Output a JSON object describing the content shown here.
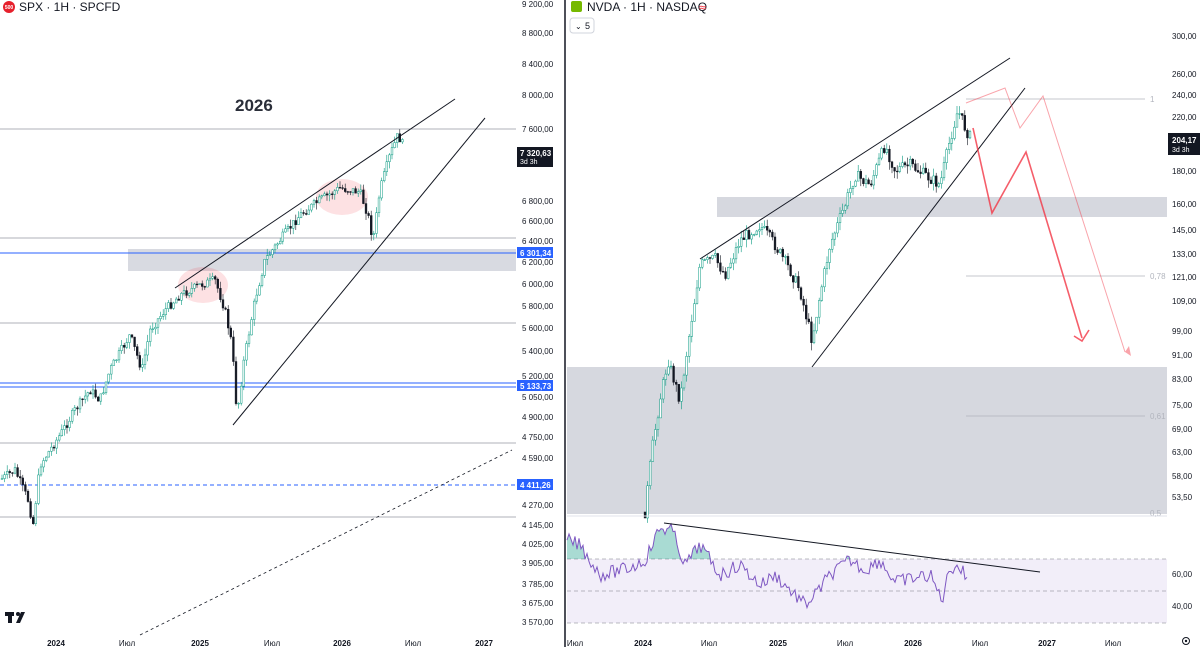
{
  "left_chart": {
    "symbol": "SPX · 1H · SPCFD",
    "badge": "500",
    "annotation": "2026",
    "price_axis": [
      "9 200,00",
      "8 800,00",
      "8 400,00",
      "8 000,00",
      "7 600,00",
      "6 800,00",
      "6 600,00",
      "6 400,00",
      "6 200,00",
      "6 000,00",
      "5 800,00",
      "5 600,00",
      "5 400,00",
      "5 200,00",
      "5 050,00",
      "4 900,00",
      "4 750,00",
      "4 590,00",
      "4 270,00",
      "4 145,00",
      "4 025,00",
      "3 905,00",
      "3 785,00",
      "3 675,00",
      "3 570,00"
    ],
    "time_axis": [
      {
        "label": "2024",
        "bold": true
      },
      {
        "label": "Июл",
        "bold": false
      },
      {
        "label": "2025",
        "bold": true
      },
      {
        "label": "Июл",
        "bold": false
      },
      {
        "label": "2026",
        "bold": true
      },
      {
        "label": "Июл",
        "bold": false
      },
      {
        "label": "2027",
        "bold": true
      }
    ],
    "price_tags": [
      {
        "label": "7 320,63",
        "sub": "3d 3h",
        "color": "#131722"
      },
      {
        "label": "6 301,34",
        "sub": "",
        "color": "#2962ff"
      },
      {
        "label": "5 133,73",
        "sub": "",
        "color": "#2962ff"
      },
      {
        "label": "4 411,26",
        "sub": "",
        "color": "#2962ff"
      }
    ],
    "logo": "TV"
  },
  "right_chart": {
    "symbol": "NVDA · 1H · NASDAQ",
    "interval_button": "5",
    "price_axis": [
      "300,00",
      "260,00",
      "240,00",
      "220,00",
      "180,00",
      "160,00",
      "145,00",
      "133,00",
      "121,00",
      "109,00",
      "99,00",
      "91,00",
      "83,00",
      "75,00",
      "69,00",
      "63,00",
      "58,00",
      "53,50"
    ],
    "price_tag": {
      "label": "204,17",
      "sub": "3d 3h",
      "color": "#131722"
    },
    "fib_labels": [
      "1",
      "0,78",
      "0,61",
      "0,5"
    ],
    "rsi_axis": [
      "60,00",
      "40,00"
    ],
    "time_axis": [
      {
        "label": "Июл",
        "bold": false
      },
      {
        "label": "2024",
        "bold": true
      },
      {
        "label": "Июл",
        "bold": false
      },
      {
        "label": "2025",
        "bold": true
      },
      {
        "label": "Июл",
        "bold": false
      },
      {
        "label": "2026",
        "bold": true
      },
      {
        "label": "Июл",
        "bold": false
      },
      {
        "label": "2027",
        "bold": true
      },
      {
        "label": "Июл",
        "bold": false
      }
    ]
  },
  "colors": {
    "up": "#089981",
    "down": "#131722",
    "trend": "#131722",
    "zone": "#d1d4dc",
    "level": "#2962ff",
    "forecast": "#f23645",
    "rsi": "#7e57c2",
    "rsi_bg": "#ede7f6"
  },
  "chart_data": [
    {
      "type": "candlestick",
      "series": [
        {
          "name": "SPX"
        }
      ],
      "last_price": 7320.63
    },
    {
      "type": "candlestick",
      "series": [
        {
          "name": "NVDA"
        }
      ],
      "last_price": 204.17
    }
  ]
}
